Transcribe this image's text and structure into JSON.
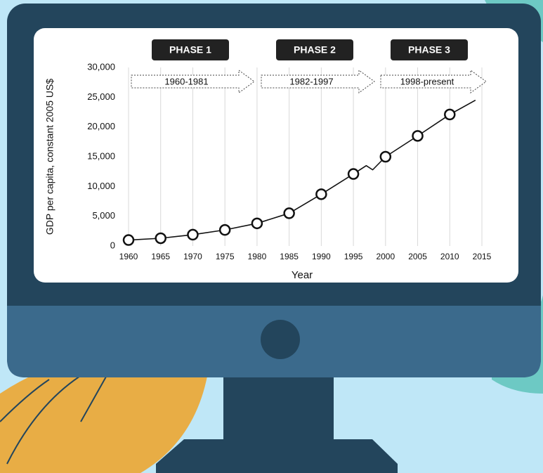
{
  "chart_data": {
    "type": "line",
    "x_label": "Year",
    "y_label": "GDP per capita, constant 2005 US$",
    "xlim": [
      1960,
      2015
    ],
    "xticks": [
      1960,
      1965,
      1970,
      1975,
      1980,
      1985,
      1990,
      1995,
      2000,
      2005,
      2010,
      2015
    ],
    "ylim": [
      0,
      30000
    ],
    "yticks": [
      0,
      {
        "value": 5000,
        "label": "5,000"
      },
      {
        "value": 10000,
        "label": "10,000"
      },
      {
        "value": 15000,
        "label": "15,000"
      },
      {
        "value": 20000,
        "label": "20,000"
      },
      {
        "value": 25000,
        "label": "25,000"
      },
      {
        "value": 30000,
        "label": "30,000"
      }
    ],
    "grid": true,
    "series": [
      {
        "color": "#111111",
        "style": "line",
        "x": [
          1960,
          1965,
          1970,
          1975,
          1980,
          1985,
          1990,
          1995,
          1997,
          1998,
          2000,
          2005,
          2010,
          2014
        ],
        "values": [
          1000,
          1300,
          1900,
          2700,
          3800,
          5500,
          8700,
          12100,
          13500,
          12800,
          15000,
          18500,
          22100,
          24500
        ]
      },
      {
        "color": "#111111",
        "style": "markers",
        "x": [
          1960,
          1965,
          1970,
          1975,
          1980,
          1985,
          1990,
          1995,
          2000,
          2005,
          2010
        ],
        "values": [
          1000,
          1300,
          1900,
          2700,
          3800,
          5500,
          8700,
          12100,
          15000,
          18500,
          22100
        ]
      }
    ],
    "phases": [
      {
        "label": "PHASE 1",
        "period": "1960-1981"
      },
      {
        "label": "PHASE 2",
        "period": "1982-1997"
      },
      {
        "label": "PHASE 3",
        "period": "1998-present"
      }
    ]
  }
}
